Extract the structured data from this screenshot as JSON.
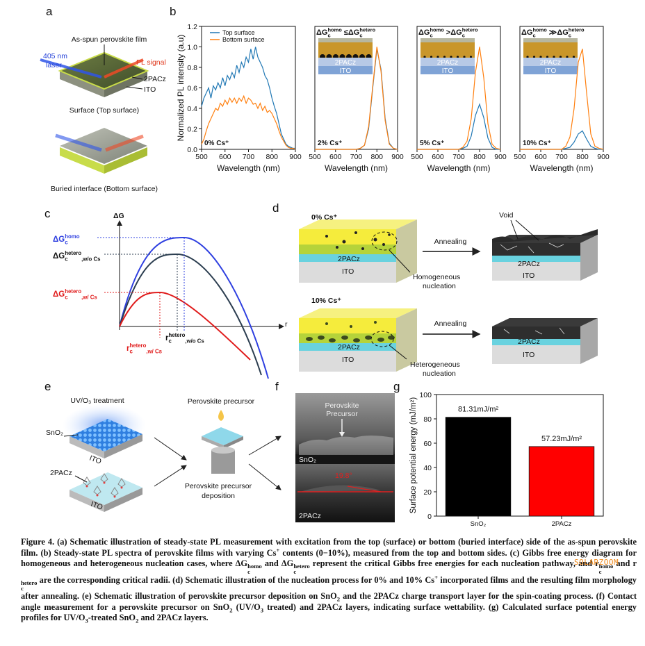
{
  "panel_labels": [
    "a",
    "b",
    "c",
    "d",
    "e",
    "f",
    "g"
  ],
  "panel_a": {
    "film": "As-spun perovskite film",
    "laser": [
      "405 nm",
      "laser"
    ],
    "pl": "PL signal",
    "layer_2pacz": "2PACz",
    "layer_ito": "ITO",
    "top_caption": "Surface (Top surface)",
    "bottom_caption": "Buried interface (Bottom surface)"
  },
  "chart_data": [
    {
      "type": "line",
      "ylabel": "Normalized PL intensity (a.u)",
      "xlabel": "Wavelength (nm)",
      "annotation": "0% Cs⁺",
      "legend": "upper left",
      "xlim": [
        500,
        900
      ],
      "ylim": [
        0,
        1.2
      ],
      "xticks": [
        500,
        600,
        700,
        800,
        900
      ],
      "yticks": [
        {
          "value": 0,
          "label": "0.0"
        },
        0.2,
        0.4,
        0.6,
        0.8,
        {
          "value": 1,
          "label": "1.0"
        },
        1.2
      ],
      "x": [
        500,
        510,
        520,
        530,
        540,
        550,
        560,
        570,
        580,
        590,
        600,
        610,
        620,
        630,
        640,
        650,
        660,
        670,
        680,
        690,
        700,
        710,
        720,
        730,
        740,
        750,
        760,
        770,
        780,
        790,
        800,
        810,
        820,
        830,
        840,
        850,
        860,
        870,
        880,
        890,
        900
      ],
      "series": [
        {
          "name": "Top surface",
          "color": "#1f77b4",
          "values": [
            0.42,
            0.5,
            0.55,
            0.6,
            0.5,
            0.62,
            0.58,
            0.65,
            0.6,
            0.7,
            0.62,
            0.72,
            0.68,
            0.75,
            0.7,
            0.82,
            0.75,
            0.85,
            0.8,
            0.9,
            0.85,
            0.98,
            0.88,
            1.0,
            0.9,
            0.85,
            0.8,
            0.72,
            0.68,
            0.6,
            0.5,
            0.42,
            0.35,
            0.25,
            0.15,
            0.1,
            0.05,
            0.03,
            0.02,
            0.01,
            0.01
          ]
        },
        {
          "name": "Bottom surface",
          "color": "#ff7f0e",
          "values": [
            0.05,
            0.1,
            0.18,
            0.25,
            0.3,
            0.35,
            0.4,
            0.38,
            0.45,
            0.42,
            0.48,
            0.44,
            0.5,
            0.46,
            0.5,
            0.45,
            0.5,
            0.47,
            0.52,
            0.45,
            0.5,
            0.48,
            0.44,
            0.45,
            0.4,
            0.45,
            0.38,
            0.42,
            0.36,
            0.38,
            0.35,
            0.3,
            0.25,
            0.18,
            0.12,
            0.08,
            0.04,
            0.02,
            0.01,
            0.01,
            0
          ]
        }
      ]
    },
    {
      "type": "line",
      "title": [
        {
          "base": "ΔG",
          "sub": "c",
          "sup": "homo"
        },
        "≤",
        {
          "base": "ΔG",
          "sub": "c",
          "sup": "hetero"
        }
      ],
      "xlabel": "Wavelength (nm)",
      "annotation": "2% Cs⁺",
      "inset_labels": [
        "2PACz",
        "ITO"
      ],
      "xlim": [
        500,
        900
      ],
      "ylim": [
        0,
        1.2
      ],
      "xticks": [
        500,
        600,
        700,
        800,
        900
      ],
      "x": [
        500,
        520,
        540,
        560,
        580,
        600,
        620,
        640,
        660,
        680,
        700,
        720,
        740,
        760,
        780,
        800,
        820,
        840,
        860,
        880,
        900
      ],
      "series": [
        {
          "color": "#1f77b4",
          "values": [
            0,
            0,
            0,
            0,
            0,
            0,
            0,
            0,
            0,
            0,
            0,
            0.01,
            0.04,
            0.2,
            0.6,
            0.98,
            0.78,
            0.3,
            0.06,
            0.01,
            0
          ]
        },
        {
          "color": "#ff7f0e",
          "values": [
            0,
            0,
            0,
            0,
            0,
            0,
            0,
            0,
            0,
            0,
            0,
            0.01,
            0.04,
            0.22,
            0.62,
            1.0,
            0.76,
            0.28,
            0.05,
            0.01,
            0
          ]
        }
      ]
    },
    {
      "type": "line",
      "title": [
        {
          "base": "ΔG",
          "sub": "c",
          "sup": "homo"
        },
        ">",
        {
          "base": "ΔG",
          "sub": "c",
          "sup": "hetero"
        }
      ],
      "xlabel": "Wavelength (nm)",
      "annotation": "5% Cs⁺",
      "inset_labels": [
        "2PACz",
        "ITO"
      ],
      "xlim": [
        500,
        900
      ],
      "ylim": [
        0,
        1.2
      ],
      "xticks": [
        500,
        600,
        700,
        800,
        900
      ],
      "x": [
        500,
        520,
        540,
        560,
        580,
        600,
        620,
        640,
        660,
        680,
        700,
        720,
        740,
        760,
        780,
        800,
        820,
        840,
        860,
        880,
        900
      ],
      "series": [
        {
          "color": "#1f77b4",
          "values": [
            0,
            0,
            0,
            0,
            0,
            0,
            0,
            0,
            0,
            0,
            0,
            0.01,
            0.03,
            0.13,
            0.33,
            0.44,
            0.31,
            0.11,
            0.02,
            0,
            0
          ]
        },
        {
          "color": "#ff7f0e",
          "values": [
            0,
            0,
            0,
            0,
            0,
            0,
            0,
            0,
            0,
            0,
            0,
            0.02,
            0.08,
            0.3,
            0.75,
            1.0,
            0.7,
            0.25,
            0.05,
            0.01,
            0
          ]
        }
      ]
    },
    {
      "type": "line",
      "title": [
        {
          "base": "ΔG",
          "sub": "c",
          "sup": "homo"
        },
        "≫",
        {
          "base": "ΔG",
          "sub": "c",
          "sup": "hetero"
        }
      ],
      "xlabel": "Wavelength (nm)",
      "annotation": "10% Cs⁺",
      "inset_labels": [
        "2PACz",
        "ITO"
      ],
      "xlim": [
        500,
        900
      ],
      "ylim": [
        0,
        1.2
      ],
      "xticks": [
        500,
        600,
        700,
        800,
        900
      ],
      "x": [
        500,
        520,
        540,
        560,
        580,
        600,
        620,
        640,
        660,
        680,
        700,
        720,
        740,
        760,
        780,
        800,
        820,
        840,
        860,
        880,
        900
      ],
      "series": [
        {
          "color": "#1f77b4",
          "values": [
            0,
            0,
            0,
            0,
            0,
            0,
            0,
            0,
            0,
            0,
            0,
            0.01,
            0.02,
            0.07,
            0.15,
            0.18,
            0.1,
            0.03,
            0.01,
            0,
            0
          ]
        },
        {
          "color": "#ff7f0e",
          "values": [
            0,
            0,
            0,
            0,
            0,
            0,
            0,
            0,
            0,
            0,
            0,
            0.03,
            0.12,
            0.4,
            0.85,
            0.98,
            0.55,
            0.15,
            0.03,
            0.01,
            0
          ]
        }
      ]
    },
    {
      "type": "bar",
      "ylabel": "Surface potential energy (mJ/m²)",
      "categories": [
        "SnO₂",
        "2PACz"
      ],
      "values": [
        81.31,
        57.23
      ],
      "value_labels": [
        "81.31mJ/m²",
        "57.23mJ/m²"
      ],
      "colors": [
        "#000000",
        "#ff0000"
      ],
      "ylim": [
        0,
        100
      ],
      "yticks": [
        0,
        20,
        40,
        60,
        80,
        100
      ]
    }
  ],
  "panel_c": {
    "y_axis": "ΔG",
    "x_axis": "r",
    "energies": [
      {
        "base": "ΔG",
        "sub": "c",
        "sup": "homo"
      },
      {
        "base": "ΔG",
        "sub": "c",
        "sup": "hetero",
        "tail": ",w/o Cs"
      },
      {
        "base": "ΔG",
        "sub": "c",
        "sup": "hetero",
        "tail": ",w/ Cs"
      }
    ],
    "radii": [
      {
        "base": "r",
        "sub": "c",
        "sup": "hetero",
        "tail": ",w/ Cs"
      },
      {
        "base": "r",
        "sub": "c",
        "sup": "hetero",
        "tail": ",w/o Cs"
      }
    ]
  },
  "panel_d": {
    "void": "Void",
    "rows": [
      {
        "label": "0% Cs⁺",
        "layer_2pacz": "2PACz",
        "layer_ito": "ITO",
        "nucleation": [
          "Homogeneous",
          "nucleation"
        ],
        "arrow": "Annealing",
        "result_2pacz": "2PACz",
        "result_ito": "ITO"
      },
      {
        "label": "10% Cs⁺",
        "layer_2pacz": "2PACz",
        "layer_ito": "ITO",
        "nucleation": [
          "Heterogeneous",
          "nucleation"
        ],
        "arrow": "Annealing",
        "result_2pacz": "2PACz",
        "result_ito": "ITO"
      }
    ]
  },
  "panel_e": {
    "uv": "UV/O₃ treatment",
    "substrates": [
      {
        "layer": "SnO₂",
        "base": "ITO"
      },
      {
        "layer": "2PACz",
        "base": "ITO"
      }
    ],
    "precursor": "Perovskite precursor",
    "deposition": [
      "Perovskite precursor",
      "deposition"
    ]
  },
  "panel_f": {
    "precursor": [
      "Perovskite",
      "Precursor"
    ],
    "top": "SnO₂",
    "angle": "19.8°",
    "bottom": "2PACz"
  },
  "caption": [
    "Figure 4. (a) Schematic illustration of steady-state PL measurement with excitation from the top (surface) or bottom (buried interface) side of the as-spun perovskite film. (b) Steady-state PL spectra of perovskite films with varying Cs",
    {
      "sup": "+"
    },
    " contents (0−10%), measured from the top and bottom sides. (c) Gibbs free energy diagram for homogeneous and heterogeneous nucleation cases, where ΔG",
    {
      "sub": "c",
      "sup": "homo"
    },
    " and ΔG",
    {
      "sub": "c",
      "sup": "hetero"
    },
    " represent the critical Gibbs free energies for each nucleation pathway, and r",
    {
      "sub": "c",
      "sup": "homo"
    },
    " and r",
    {
      "sub": "c",
      "sup": "hetero"
    },
    " are the corresponding critical radii. (d) Schematic illustration of the nucleation process for 0% and 10% Cs",
    {
      "sup": "+"
    },
    " incorporated films and the resulting film morphology after annealing. (e) Schematic illustration of perovskite precursor deposition on SnO",
    {
      "sub": "2"
    },
    " and the 2PACz charge transport layer for the spin-coating process. (f) Contact angle measurement for a perovskite precursor on SnO",
    {
      "sub": "2"
    },
    " (UV/O",
    {
      "sub": "3"
    },
    " treated) and 2PACz layers, indicating surface wettability. (g) Calculated surface potential energy profiles for UV/O",
    {
      "sub": "3"
    },
    "-treated SnO",
    {
      "sub": "2"
    },
    " and 2PACz layers."
  ],
  "watermark": "SOLARZOOM"
}
